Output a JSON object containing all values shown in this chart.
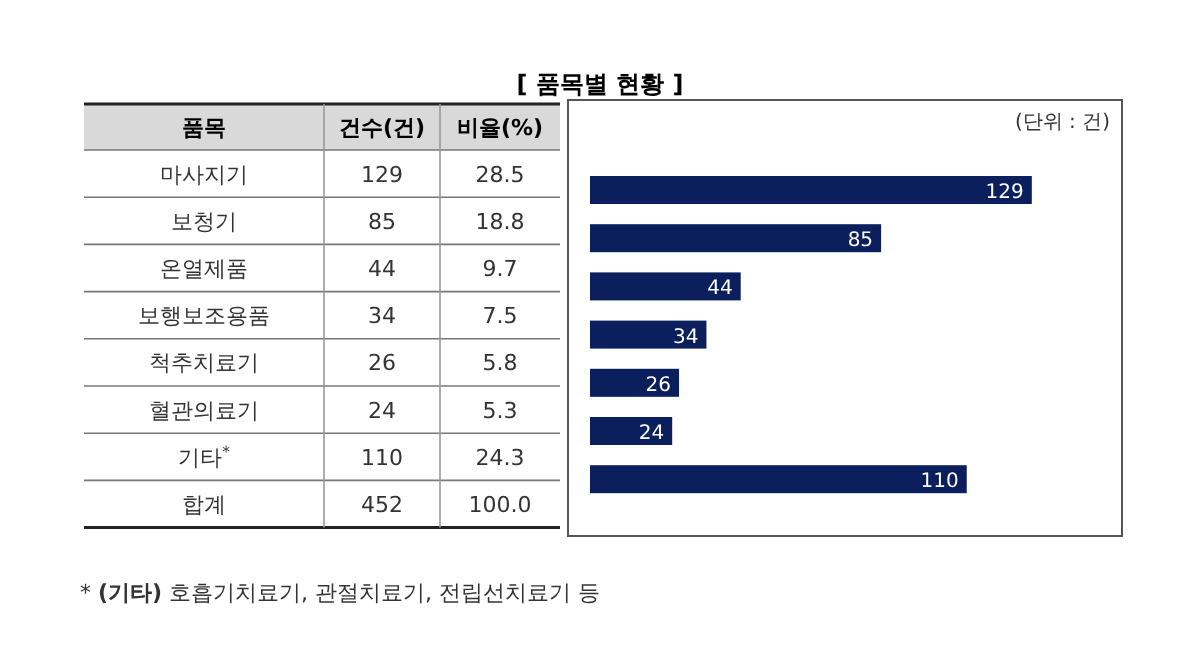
{
  "chart_data": {
    "type": "bar",
    "orientation": "horizontal",
    "title": "[ 품목별 현황 ]",
    "ylabel": "품목",
    "categories": [
      "마사지기",
      "보청기",
      "온열제품",
      "보행보조용품",
      "척추치료기",
      "혈관의료기",
      "기타$^{*}$"
    ],
    "values": [
      129,
      85,
      44,
      34,
      26,
      24,
      110
    ],
    "color": "#0a1f5c",
    "data_labels": true,
    "annotations": [
      "(단위 : 건)",
      "건수(건)",
      "비율(%)",
      "129",
      "85",
      "44",
      "34",
      "26",
      "24",
      "110",
      "28.5",
      "18.8",
      "9.7",
      "7.5",
      "5.8",
      "5.3",
      "24.3",
      "합계",
      "452",
      "100.0",
      "* **(기타)** 호흡기치료기, 관절치료기, 전립선치료기 등"
    ]
  }
}
